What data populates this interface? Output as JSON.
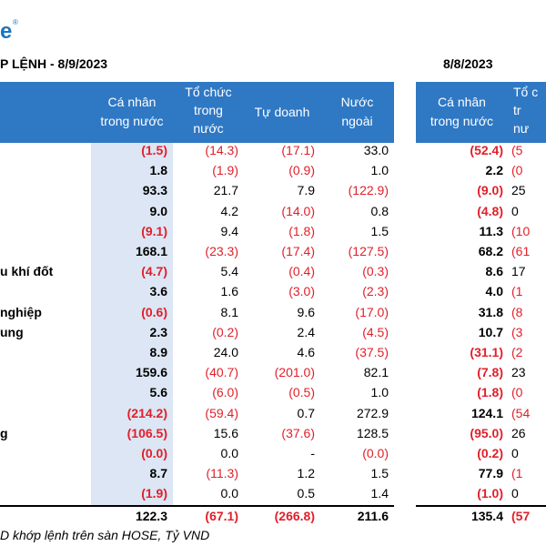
{
  "logo": {
    "text": "e",
    "mark": "®"
  },
  "left": {
    "title": "P LỆNH - 8/9/2023",
    "headers": [
      [
        "Cá nhân",
        "trong nước"
      ],
      [
        "Tổ chức",
        "trong",
        "nước"
      ],
      [
        "Tự doanh"
      ],
      [
        "Nước",
        "ngoài"
      ]
    ],
    "rows": [
      {
        "label": null,
        "cells": [
          "(1.5)",
          "(14.3)",
          "(17.1)",
          "33.0"
        ]
      },
      {
        "label": null,
        "cells": [
          "1.8",
          "(1.9)",
          "(0.9)",
          "1.0"
        ]
      },
      {
        "label": null,
        "cells": [
          "93.3",
          "21.7",
          "7.9",
          "(122.9)"
        ]
      },
      {
        "label": null,
        "cells": [
          "9.0",
          "4.2",
          "(14.0)",
          "0.8"
        ]
      },
      {
        "label": null,
        "cells": [
          "(9.1)",
          "9.4",
          "(1.8)",
          "1.5"
        ]
      },
      {
        "label": null,
        "cells": [
          "168.1",
          "(23.3)",
          "(17.4)",
          "(127.5)"
        ]
      },
      {
        "label": "u khí đốt",
        "cells": [
          "(4.7)",
          "5.4",
          "(0.4)",
          "(0.3)"
        ]
      },
      {
        "label": null,
        "cells": [
          "3.6",
          "1.6",
          "(3.0)",
          "(2.3)"
        ]
      },
      {
        "label": "nghiệp",
        "cells": [
          "(0.6)",
          "8.1",
          "9.6",
          "(17.0)"
        ]
      },
      {
        "label": "ung",
        "cells": [
          "2.3",
          "(0.2)",
          "2.4",
          "(4.5)"
        ]
      },
      {
        "label": null,
        "cells": [
          "8.9",
          "24.0",
          "4.6",
          "(37.5)"
        ]
      },
      {
        "label": null,
        "cells": [
          "159.6",
          "(40.7)",
          "(201.0)",
          "82.1"
        ]
      },
      {
        "label": null,
        "cells": [
          "5.6",
          "(6.0)",
          "(0.5)",
          "1.0"
        ]
      },
      {
        "label": null,
        "cells": [
          "(214.2)",
          "(59.4)",
          "0.7",
          "272.9"
        ]
      },
      {
        "label": "g",
        "cells": [
          "(106.5)",
          "15.6",
          "(37.6)",
          "128.5"
        ]
      },
      {
        "label": null,
        "cells": [
          "(0.0)",
          "0.0",
          "-",
          "(0.0)"
        ]
      },
      {
        "label": null,
        "cells": [
          "8.7",
          "(11.3)",
          "1.2",
          "1.5"
        ]
      },
      {
        "label": null,
        "cells": [
          "(1.9)",
          "0.0",
          "0.5",
          "1.4"
        ]
      }
    ],
    "total": [
      "122.3",
      "(67.1)",
      "(266.8)",
      "211.6"
    ]
  },
  "right": {
    "title": "8/8/2023",
    "headers": [
      [
        "Cá nhân",
        "trong nước"
      ],
      [
        "Tổ c",
        "tr",
        "nư"
      ]
    ],
    "rows": [
      [
        "(52.4)",
        "(5"
      ],
      [
        "2.2",
        "(0"
      ],
      [
        "(9.0)",
        "25"
      ],
      [
        "(4.8)",
        "0"
      ],
      [
        "11.3",
        "(10"
      ],
      [
        "68.2",
        "(61"
      ],
      [
        "8.6",
        "17"
      ],
      [
        "4.0",
        "(1"
      ],
      [
        "31.8",
        "(8"
      ],
      [
        "10.7",
        "(3"
      ],
      [
        "(31.1)",
        "(2"
      ],
      [
        "(7.8)",
        "23"
      ],
      [
        "(1.8)",
        "(0"
      ],
      [
        "124.1",
        "(54"
      ],
      [
        "(95.0)",
        "26"
      ],
      [
        "(0.2)",
        "0"
      ],
      [
        "77.9",
        "(1"
      ],
      [
        "(1.0)",
        "0"
      ]
    ],
    "total": [
      "135.4",
      "(57"
    ]
  },
  "footer": "D khớp lệnh trên sàn HOSE, Tỷ VND"
}
